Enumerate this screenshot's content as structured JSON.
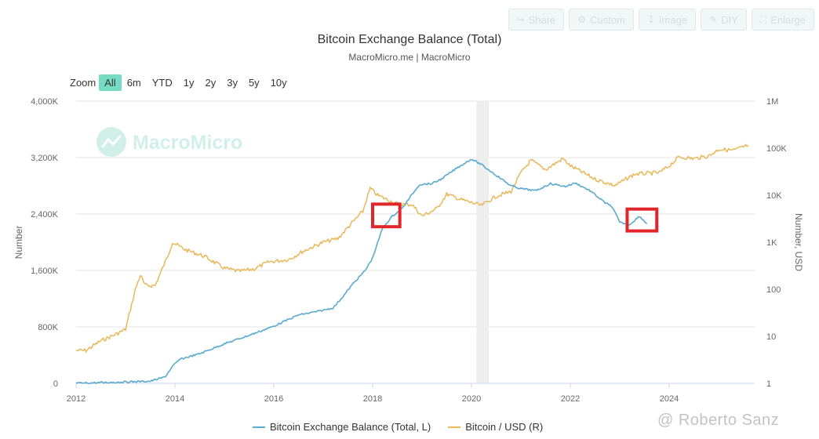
{
  "toolbar": {
    "buttons": [
      {
        "label": "Share",
        "icon": "share-icon"
      },
      {
        "label": "Custom",
        "icon": "gear-icon"
      },
      {
        "label": "Image",
        "icon": "download-icon"
      },
      {
        "label": "DIY",
        "icon": "pencil-icon"
      },
      {
        "label": "Enlarge",
        "icon": "expand-icon"
      }
    ]
  },
  "zoom": {
    "label": "Zoom",
    "options": [
      "All",
      "6m",
      "YTD",
      "1y",
      "2y",
      "3y",
      "5y",
      "10y"
    ],
    "selected": "All"
  },
  "watermark": "MacroMicro",
  "credit": "@ Roberto Sanz",
  "colors": {
    "exchange": "#5aa9cf",
    "btc": "#e8b85a",
    "highlight_box": "#e0262a",
    "zoom_active": "#74dcc3",
    "shaded_band": "#eeeeee"
  },
  "chart_data": {
    "type": "line",
    "title": "Bitcoin Exchange Balance (Total)",
    "subtitle": "MacroMicro.me | MacroMicro",
    "x_ticks": [
      "2012",
      "2014",
      "2016",
      "2018",
      "2020",
      "2022",
      "2024"
    ],
    "x_range": [
      2012,
      2025.75
    ],
    "y_left": {
      "label": "Number",
      "ticks": [
        "0",
        "800K",
        "1,600K",
        "2,400K",
        "3,200K",
        "4,000K"
      ],
      "range": [
        0,
        4000000
      ]
    },
    "y_right": {
      "label": "Number, USD",
      "scale": "log",
      "ticks": [
        "1",
        "10",
        "100",
        "1K",
        "10K",
        "100K",
        "1M"
      ],
      "range": [
        1,
        1000000
      ]
    },
    "shaded_period": [
      2020.1,
      2020.35
    ],
    "highlights": [
      [
        2018.0,
        2018.55,
        2220000,
        2540000
      ],
      [
        2023.15,
        2023.75,
        2160000,
        2470000
      ]
    ],
    "series": [
      {
        "name": "Bitcoin Exchange Balance (Total, L)",
        "axis": "left",
        "x": [
          2012.0,
          2012.5,
          2013.0,
          2013.5,
          2013.8,
          2013.95,
          2014.1,
          2014.5,
          2015.0,
          2015.5,
          2016.0,
          2016.5,
          2016.9,
          2017.2,
          2017.4,
          2017.6,
          2017.85,
          2018.0,
          2018.2,
          2018.4,
          2018.6,
          2018.8,
          2018.95,
          2019.2,
          2019.4,
          2019.7,
          2020.0,
          2020.2,
          2020.5,
          2020.8,
          2021.0,
          2021.3,
          2021.6,
          2021.9,
          2022.1,
          2022.4,
          2022.7,
          2022.85,
          2023.0,
          2023.2,
          2023.4,
          2023.55
        ],
        "values": [
          0,
          10000,
          20000,
          30000,
          90000,
          240000,
          340000,
          420000,
          560000,
          680000,
          810000,
          970000,
          1020000,
          1070000,
          1230000,
          1410000,
          1600000,
          1780000,
          2200000,
          2370000,
          2480000,
          2680000,
          2820000,
          2830000,
          2900000,
          3050000,
          3180000,
          3100000,
          2950000,
          2800000,
          2760000,
          2730000,
          2830000,
          2790000,
          2840000,
          2730000,
          2560000,
          2500000,
          2280000,
          2250000,
          2370000,
          2260000
        ]
      },
      {
        "name": "Bitcoin / USD (R)",
        "axis": "right",
        "x": [
          2012.0,
          2012.2,
          2012.5,
          2012.8,
          2013.0,
          2013.2,
          2013.3,
          2013.4,
          2013.6,
          2013.85,
          2013.95,
          2014.2,
          2014.6,
          2015.0,
          2015.3,
          2015.6,
          2015.9,
          2016.3,
          2016.6,
          2017.0,
          2017.3,
          2017.6,
          2017.8,
          2017.95,
          2018.1,
          2018.5,
          2018.8,
          2019.0,
          2019.3,
          2019.5,
          2019.8,
          2020.2,
          2020.5,
          2020.8,
          2021.0,
          2021.2,
          2021.5,
          2021.85,
          2022.0,
          2022.5,
          2022.9,
          2023.3,
          2023.8,
          2024.0,
          2024.2,
          2024.5,
          2024.8,
          2025.0,
          2025.3,
          2025.6
        ],
        "values": [
          5,
          5,
          8,
          11,
          14,
          100,
          200,
          120,
          120,
          500,
          1000,
          700,
          500,
          280,
          240,
          270,
          380,
          430,
          650,
          1000,
          1200,
          2700,
          4500,
          14000,
          10000,
          6500,
          6300,
          3600,
          5200,
          10500,
          8000,
          6000,
          9500,
          12000,
          30000,
          55000,
          35000,
          60000,
          42000,
          22000,
          16000,
          28000,
          30000,
          42000,
          65000,
          60000,
          68000,
          95000,
          90000,
          115000
        ]
      }
    ]
  }
}
